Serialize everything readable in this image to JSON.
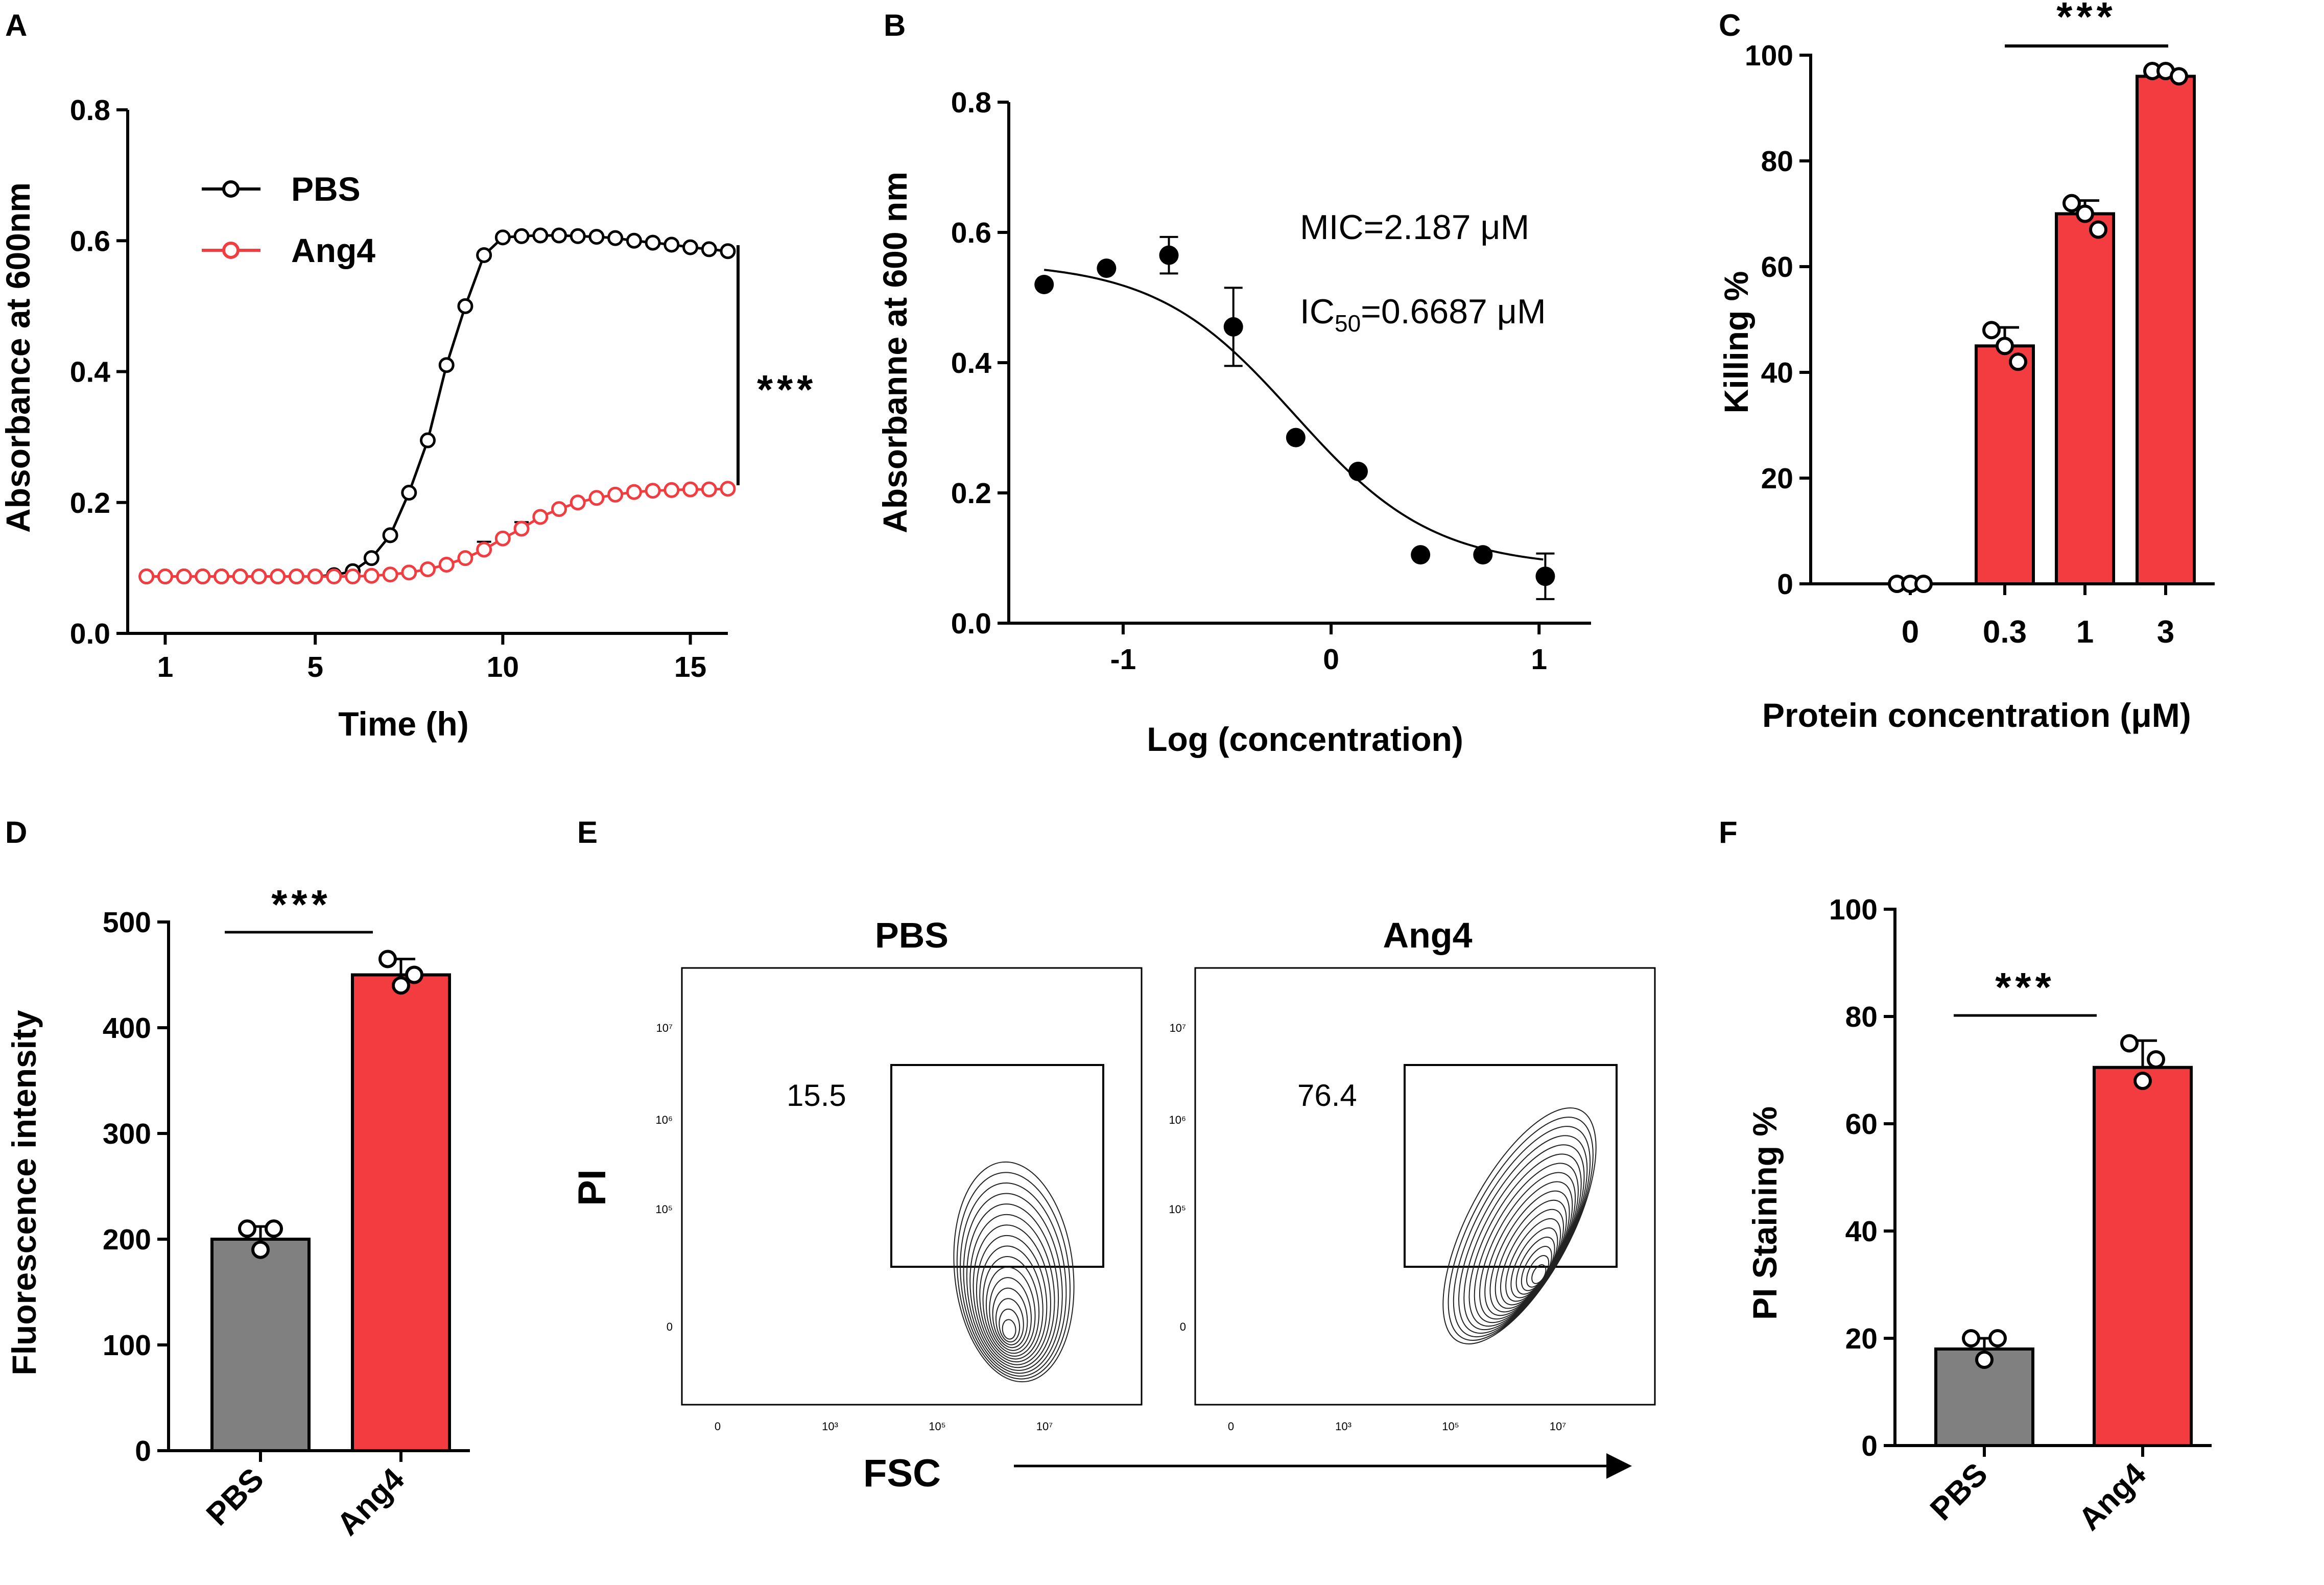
{
  "panels": {
    "A": "A",
    "B": "B",
    "C": "C",
    "D": "D",
    "E": "E",
    "F": "F"
  },
  "colors": {
    "ang4": "#f33c3f",
    "pbs": "#808080",
    "black": "#000000"
  },
  "chart_data": [
    {
      "id": "A",
      "type": "line",
      "xlabel": "Time (h)",
      "ylabel": "Absorbance at 600nm",
      "xlim": [
        0,
        16
      ],
      "ylim": [
        0,
        0.8
      ],
      "xticks": [
        1,
        5,
        10,
        15
      ],
      "yticks": [
        "0.0",
        "0.2",
        "0.4",
        "0.6",
        "0.8"
      ],
      "significance": "***",
      "legend_position": "top-left",
      "series": [
        {
          "name": "PBS",
          "x": [
            0.5,
            1,
            1.5,
            2,
            2.5,
            3,
            3.5,
            4,
            4.5,
            5,
            5.5,
            6,
            6.5,
            7,
            7.5,
            8,
            8.5,
            9,
            9.5,
            10,
            10.5,
            11,
            11.5,
            12,
            12.5,
            13,
            13.5,
            14,
            14.5,
            15,
            15.5,
            16
          ],
          "y": [
            0.087,
            0.087,
            0.087,
            0.087,
            0.087,
            0.087,
            0.087,
            0.087,
            0.087,
            0.087,
            0.089,
            0.095,
            0.115,
            0.15,
            0.215,
            0.295,
            0.41,
            0.5,
            0.578,
            0.605,
            0.607,
            0.608,
            0.608,
            0.607,
            0.606,
            0.604,
            0.6,
            0.597,
            0.594,
            0.59,
            0.587,
            0.584
          ]
        },
        {
          "name": "Ang4",
          "x": [
            0.5,
            1,
            1.5,
            2,
            2.5,
            3,
            3.5,
            4,
            4.5,
            5,
            5.5,
            6,
            6.5,
            7,
            7.5,
            8,
            8.5,
            9,
            9.5,
            10,
            10.5,
            11,
            11.5,
            12,
            12.5,
            13,
            13.5,
            14,
            14.5,
            15,
            15.5,
            16
          ],
          "y": [
            0.087,
            0.087,
            0.087,
            0.087,
            0.087,
            0.087,
            0.087,
            0.087,
            0.087,
            0.087,
            0.087,
            0.087,
            0.088,
            0.09,
            0.093,
            0.098,
            0.105,
            0.115,
            0.128,
            0.145,
            0.16,
            0.178,
            0.19,
            0.2,
            0.207,
            0.212,
            0.216,
            0.218,
            0.219,
            0.22,
            0.22,
            0.221
          ],
          "error": [
            0,
            0,
            0,
            0,
            0,
            0,
            0,
            0,
            0,
            0,
            0,
            0,
            0,
            0,
            0,
            0,
            0,
            0,
            0.012,
            0,
            0.01,
            0,
            0,
            0,
            0,
            0,
            0,
            0,
            0,
            0,
            0,
            0
          ]
        }
      ]
    },
    {
      "id": "B",
      "type": "scatter",
      "xlabel": "Log (concentration)",
      "ylabel": "Absorbanne at 600 nm",
      "xlim": [
        -1.55,
        1.25
      ],
      "ylim": [
        0,
        0.8
      ],
      "xticks": [
        "-1",
        "0",
        "1"
      ],
      "yticks": [
        "0.0",
        "0.2",
        "0.4",
        "0.6",
        "0.8"
      ],
      "annotations": {
        "mic": "MIC=2.187 μM",
        "ic50_prefix": "IC",
        "ic50_sub": "50",
        "ic50_value": "=0.6687 μM"
      },
      "points": [
        {
          "x": -1.38,
          "y": 0.52,
          "err": 0
        },
        {
          "x": -1.08,
          "y": 0.545,
          "err": 0
        },
        {
          "x": -0.78,
          "y": 0.565,
          "err": 0.028
        },
        {
          "x": -0.47,
          "y": 0.455,
          "err": 0.06
        },
        {
          "x": -0.17,
          "y": 0.285,
          "err": 0
        },
        {
          "x": 0.13,
          "y": 0.233,
          "err": 0
        },
        {
          "x": 0.43,
          "y": 0.105,
          "err": 0
        },
        {
          "x": 0.73,
          "y": 0.105,
          "err": 0
        },
        {
          "x": 1.03,
          "y": 0.072,
          "err": 0.035
        }
      ],
      "fit": {
        "top": 0.555,
        "bottom": 0.085,
        "logIC50": -0.175,
        "hill": -1.3
      }
    },
    {
      "id": "C",
      "type": "bar",
      "xlabel": "Protein concentration (μM)",
      "ylabel": "Killing %",
      "categories": [
        "0",
        "0.3",
        "1",
        "3"
      ],
      "values": [
        0,
        45,
        70,
        96
      ],
      "errors": [
        0,
        3.5,
        2.5,
        1
      ],
      "points": [
        [
          0,
          0,
          0
        ],
        [
          48,
          45,
          42
        ],
        [
          72,
          70,
          67
        ],
        [
          97,
          97,
          96
        ]
      ],
      "ylim": [
        0,
        100
      ],
      "yticks": [
        "0",
        "20",
        "40",
        "60",
        "80",
        "100"
      ],
      "significance": "***"
    },
    {
      "id": "D",
      "type": "bar",
      "xlabel": "",
      "ylabel": "Fluorescence intensity",
      "categories": [
        "PBS",
        "Ang4"
      ],
      "values": [
        200,
        450
      ],
      "errors": [
        12,
        15
      ],
      "points": [
        [
          210,
          190,
          210
        ],
        [
          465,
          440,
          450
        ]
      ],
      "ylim": [
        0,
        500
      ],
      "yticks": [
        "0",
        "100",
        "200",
        "300",
        "400",
        "500"
      ],
      "significance": "***"
    },
    {
      "id": "F",
      "type": "bar",
      "xlabel": "",
      "ylabel": "PI Staining %",
      "categories": [
        "PBS",
        "Ang4"
      ],
      "values": [
        18,
        70.5
      ],
      "errors": [
        2,
        5
      ],
      "points": [
        [
          20,
          16,
          20
        ],
        [
          75,
          68,
          72
        ]
      ],
      "ylim": [
        0,
        100
      ],
      "yticks": [
        "0",
        "20",
        "40",
        "60",
        "80",
        "100"
      ],
      "significance": "***"
    }
  ],
  "flow": {
    "y_axis_label": "PI",
    "x_axis_label": "FSC",
    "y_ticks": [
      "10⁷",
      "10⁶",
      "10⁵",
      "0"
    ],
    "x_ticks": [
      "0",
      "10³",
      "10⁵",
      "10⁷"
    ],
    "plots": [
      {
        "title": "PBS",
        "gate_value": "15.5"
      },
      {
        "title": "Ang4",
        "gate_value": "76.4"
      }
    ]
  }
}
